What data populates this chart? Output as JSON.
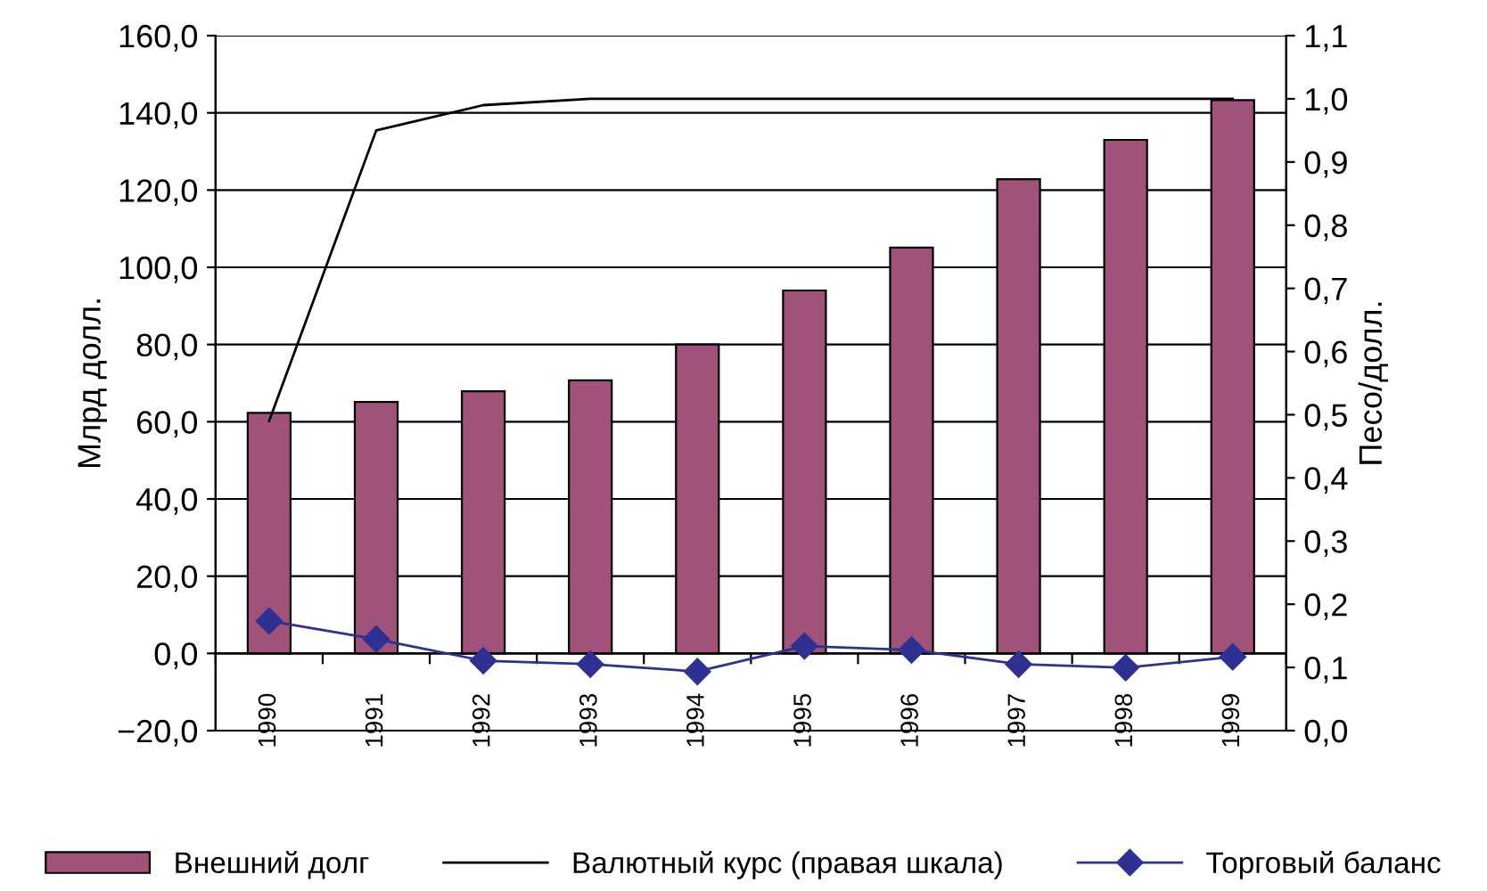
{
  "chart_data": {
    "type": "bar",
    "categories": [
      "1990",
      "1991",
      "1992",
      "1993",
      "1994",
      "1995",
      "1996",
      "1997",
      "1998",
      "1999"
    ],
    "ylabel": "Млрд долл.",
    "y2label": "Песо/долл.",
    "ylim": [
      -20,
      160
    ],
    "yticks": [
      {
        "value": -20,
        "label": "−20,0"
      },
      {
        "value": 0,
        "label": "0,0"
      },
      {
        "value": 20,
        "label": "20,0"
      },
      {
        "value": 40,
        "label": "40,0"
      },
      {
        "value": 60,
        "label": "60,0"
      },
      {
        "value": 80,
        "label": "80,0"
      },
      {
        "value": 100,
        "label": "100,0"
      },
      {
        "value": 120,
        "label": "120,0"
      },
      {
        "value": 140,
        "label": "140,0"
      },
      {
        "value": 160,
        "label": "160,0"
      }
    ],
    "y2lim": [
      0,
      1.1
    ],
    "y2ticks": [
      {
        "value": 0,
        "label": "0,0"
      },
      {
        "value": 0.1,
        "label": "0,1"
      },
      {
        "value": 0.2,
        "label": "0,2"
      },
      {
        "value": 0.3,
        "label": "0,3"
      },
      {
        "value": 0.4,
        "label": "0,4"
      },
      {
        "value": 0.5,
        "label": "0,5"
      },
      {
        "value": 0.6,
        "label": "0,6"
      },
      {
        "value": 0.7,
        "label": "0,7"
      },
      {
        "value": 0.8,
        "label": "0,8"
      },
      {
        "value": 0.9,
        "label": "0,9"
      },
      {
        "value": 1.0,
        "label": "1,0"
      },
      {
        "value": 1.1,
        "label": "1,1"
      }
    ],
    "grid": "y",
    "legend": "bottom",
    "series": [
      {
        "name": "Внешний долг",
        "color": "#a0527a",
        "values": [
          62.3,
          65.1,
          67.9,
          70.7,
          80.0,
          94.0,
          105.1,
          122.8,
          133.0,
          143.3
        ]
      },
      {
        "name": "Валютный курс (правая шкала)",
        "type": "line",
        "axis": "y2",
        "color": "#000000",
        "marker": "none",
        "values": [
          0.49,
          0.95,
          0.99,
          1.0,
          1.0,
          1.0,
          1.0,
          1.0,
          1.0,
          1.0
        ]
      },
      {
        "name": "Торговый баланс",
        "type": "line",
        "color": "#2e3192",
        "marker": "diamond",
        "values": [
          8.4,
          3.7,
          -1.9,
          -2.8,
          -4.7,
          1.9,
          0.9,
          -2.8,
          -3.7,
          -0.9
        ]
      }
    ]
  }
}
